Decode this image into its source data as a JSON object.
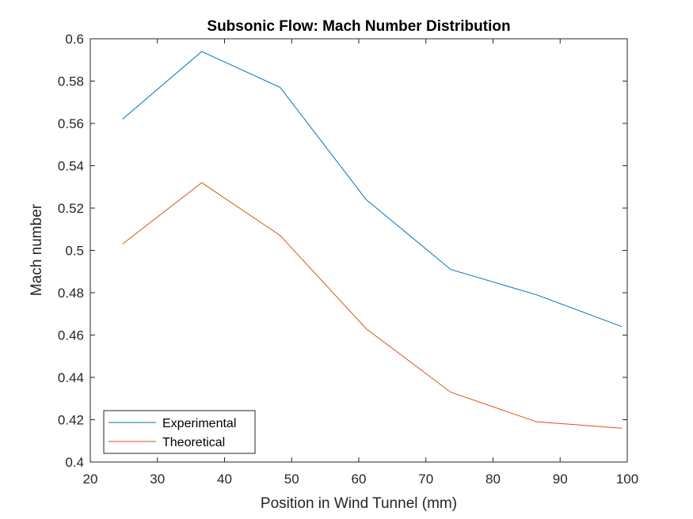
{
  "chart_data": {
    "type": "line",
    "title": "Subsonic Flow: Mach Number Distribution",
    "xlabel": "Position in Wind Tunnel (mm)",
    "ylabel": "Mach number",
    "xlim": [
      20,
      100
    ],
    "ylim": [
      0.4,
      0.6
    ],
    "xticks": [
      20,
      30,
      40,
      50,
      60,
      70,
      80,
      90,
      100
    ],
    "yticks": [
      0.4,
      0.42,
      0.44,
      0.46,
      0.48,
      0.5,
      0.52,
      0.54,
      0.56,
      0.58,
      0.6
    ],
    "xtick_labels": [
      "20",
      "30",
      "40",
      "50",
      "60",
      "70",
      "80",
      "90",
      "100"
    ],
    "ytick_labels": [
      "0.4",
      "0.42",
      "0.44",
      "0.46",
      "0.48",
      "0.5",
      "0.52",
      "0.54",
      "0.56",
      "0.58",
      "0.6"
    ],
    "grid": false,
    "legend_position": "bottom-left",
    "x": [
      24.8,
      36.6,
      48.3,
      61.1,
      73.7,
      86.5,
      99.2
    ],
    "series": [
      {
        "name": "Experimental",
        "color": "#0072BD",
        "values": [
          0.562,
          0.594,
          0.577,
          0.524,
          0.491,
          0.479,
          0.464
        ]
      },
      {
        "name": "Theoretical",
        "color": "#D95319",
        "values": [
          0.503,
          0.532,
          0.507,
          0.463,
          0.433,
          0.419,
          0.416
        ]
      }
    ]
  }
}
